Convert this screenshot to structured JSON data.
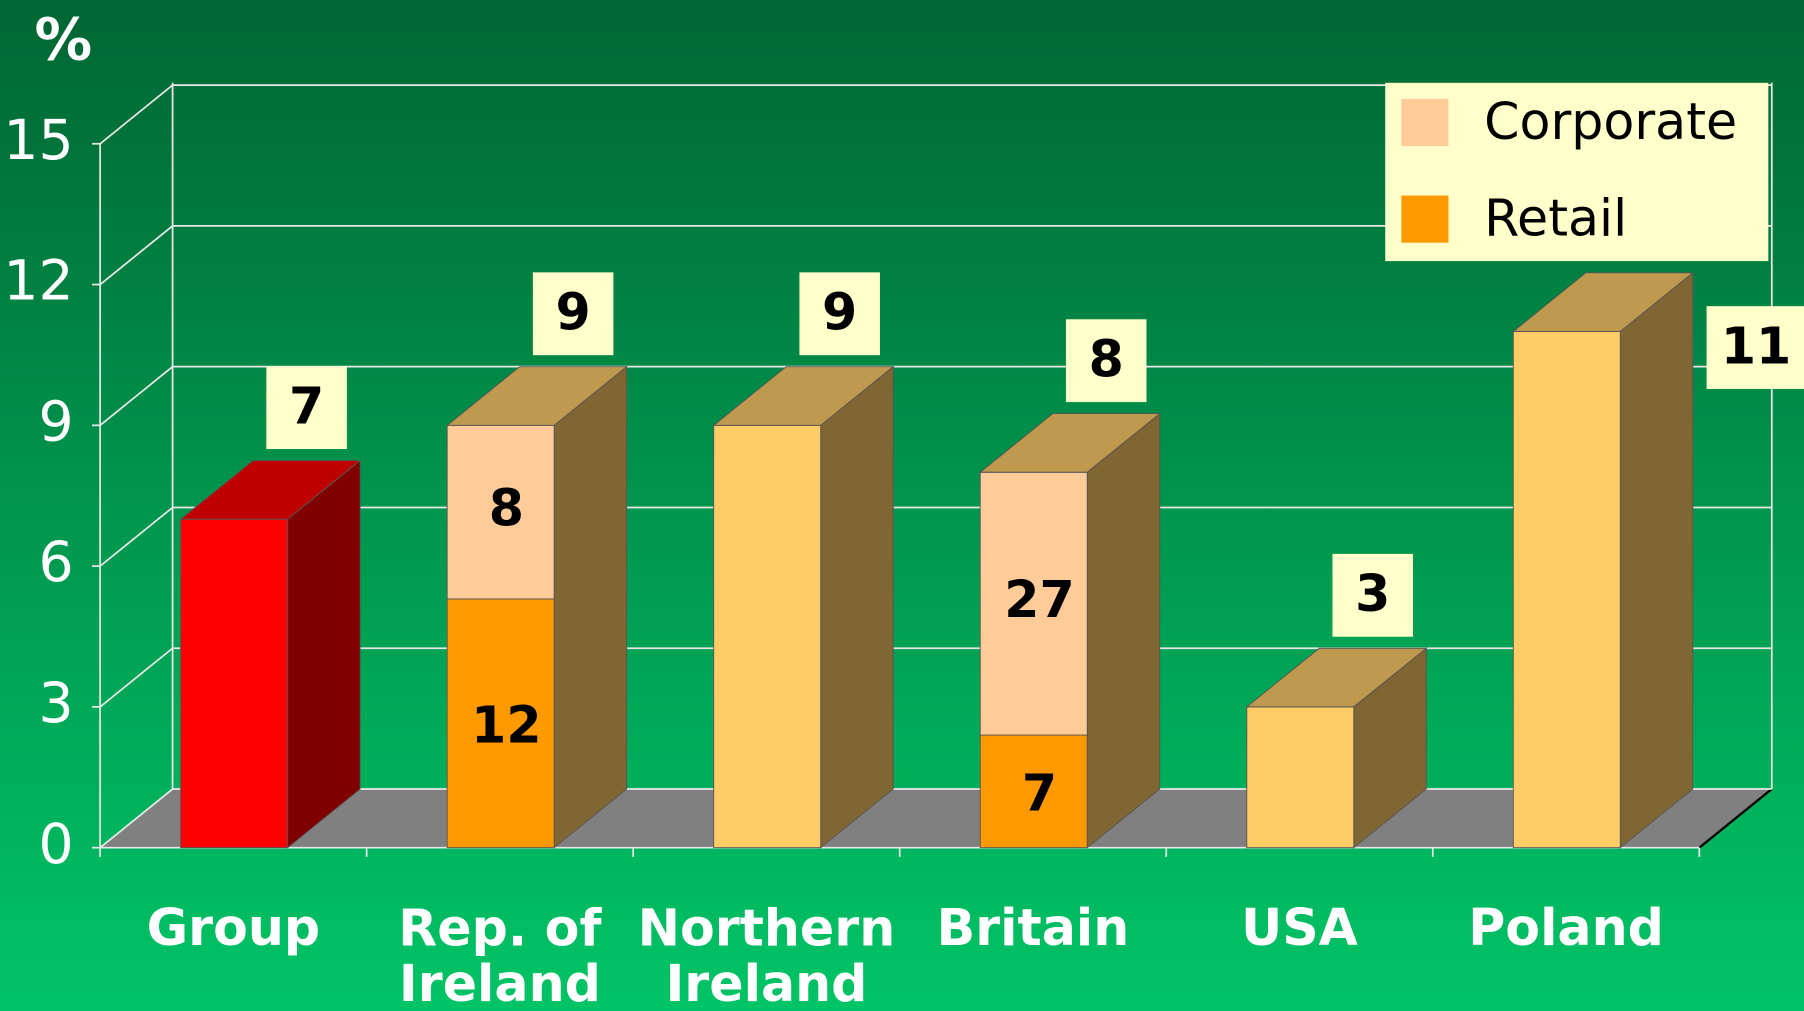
{
  "chart_data": {
    "type": "bar3d",
    "ylabel": "%",
    "categories": [
      "Group",
      "Rep. of Ireland",
      "Northern Ireland",
      "Britain",
      "USA",
      "Poland"
    ],
    "values": [
      7,
      9,
      9,
      8,
      3,
      11
    ],
    "colors": [
      "#ff0000",
      "#ffcc66",
      "#ffcc66",
      "#ffcc66",
      "#ffcc66",
      "#ffcc66"
    ],
    "series": [
      {
        "name": "Corporate",
        "color": "#ffcc99",
        "values": [
          null,
          3.7,
          null,
          5.6,
          null,
          null
        ],
        "inner_labels": [
          null,
          "8",
          null,
          "27",
          null,
          null
        ]
      },
      {
        "name": "Retail",
        "color": "#ff9900",
        "values": [
          null,
          5.3,
          null,
          2.4,
          null,
          null
        ],
        "inner_labels": [
          null,
          "12",
          null,
          "7",
          null,
          null
        ]
      }
    ],
    "ylim": [
      0,
      15
    ],
    "yticks": [
      0,
      3,
      6,
      9,
      12,
      15
    ],
    "grid": true,
    "legend": "top-right"
  }
}
